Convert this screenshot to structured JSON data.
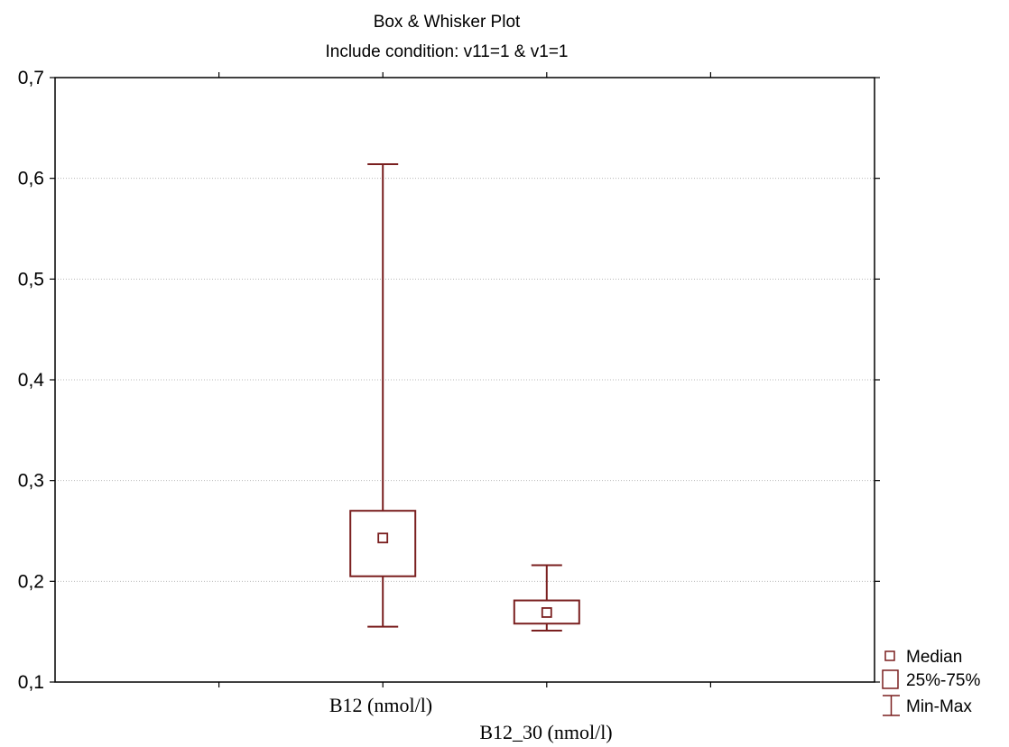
{
  "chart_data": {
    "type": "box",
    "title": "Box & Whisker Plot",
    "subtitle": "Include condition: v11=1 & v1=1",
    "categories": [
      "B12 (nmol/l)",
      "B12_30 (nmol/l)"
    ],
    "boxes": [
      {
        "min": 0.155,
        "q1": 0.205,
        "median": 0.243,
        "q3": 0.27,
        "max": 0.614
      },
      {
        "min": 0.151,
        "q1": 0.158,
        "median": 0.169,
        "q3": 0.181,
        "max": 0.216
      }
    ],
    "ylim": [
      0.1,
      0.7
    ],
    "yticks": [
      "0,1",
      "0,2",
      "0,3",
      "0,4",
      "0,5",
      "0,6",
      "0,7"
    ],
    "grid": true,
    "legend_position": "bottom-right",
    "legend": [
      "Median",
      "25%-75%",
      "Min-Max"
    ],
    "color": "#7a1f1f"
  }
}
